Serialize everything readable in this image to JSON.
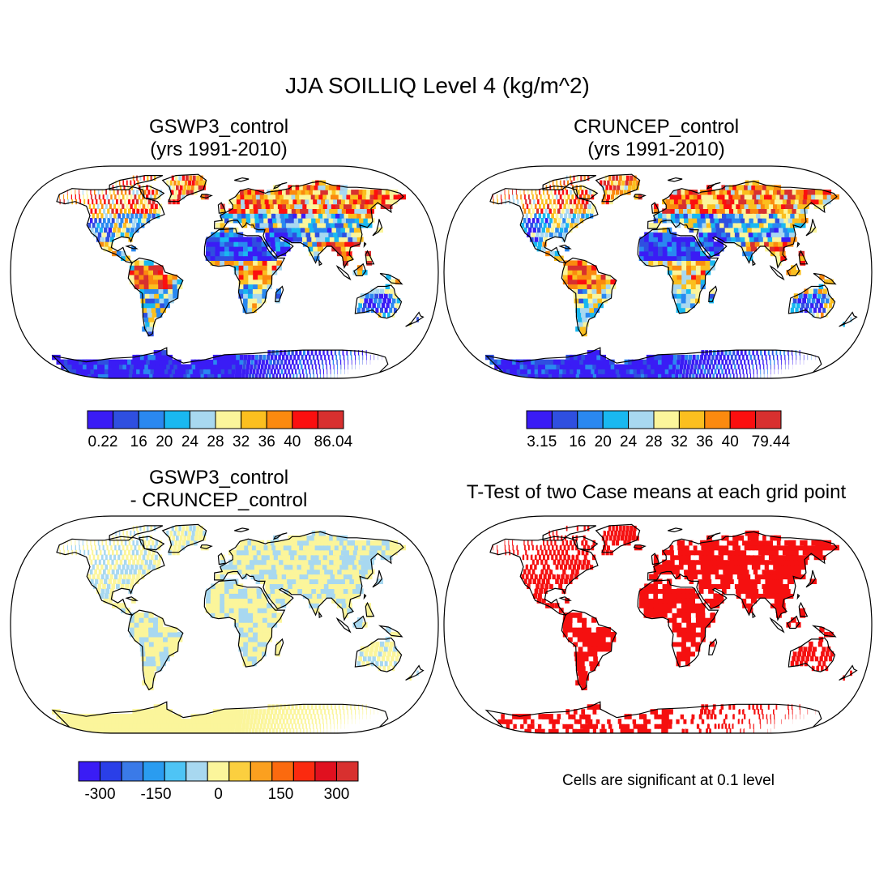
{
  "title": "JJA SOILLIQ Level 4 (kg/m^2)",
  "chart_data": [
    {
      "type": "heatmap",
      "title_line1": "GSWP3_control",
      "title_line2": "(yrs 1991-2010)",
      "projection": "robinson",
      "colorbar": {
        "colors": [
          "#3a1cf5",
          "#2f4fe0",
          "#2a88f0",
          "#19b8f0",
          "#a8d8f0",
          "#fbf59b",
          "#fbbf1f",
          "#fb8a0f",
          "#fb0f0f",
          "#d8302f"
        ],
        "tick_labels": [
          "0.22",
          "16",
          "20",
          "24",
          "28",
          "32",
          "36",
          "40",
          "86.04"
        ]
      }
    },
    {
      "type": "heatmap",
      "title_line1": "CRUNCEP_control",
      "title_line2": "(yrs 1991-2010)",
      "projection": "robinson",
      "colorbar": {
        "colors": [
          "#3a1cf5",
          "#2f4fe0",
          "#2a88f0",
          "#19b8f0",
          "#a8d8f0",
          "#fbf59b",
          "#fbbf1f",
          "#fb8a0f",
          "#fb0f0f",
          "#d8302f"
        ],
        "tick_labels": [
          "3.15",
          "16",
          "20",
          "24",
          "28",
          "32",
          "36",
          "40",
          "79.44"
        ]
      }
    },
    {
      "type": "heatmap",
      "title_line1": "GSWP3_control",
      "title_line2": "- CRUNCEP_control",
      "projection": "robinson",
      "colorbar": {
        "colors": [
          "#3a1cf5",
          "#2a3fe8",
          "#3a7ae8",
          "#2a9cf0",
          "#4ec4f5",
          "#a8d8f0",
          "#fbf59b",
          "#fbcf3f",
          "#fba01f",
          "#fb6a0f",
          "#fb2a0f",
          "#e0101f",
          "#d8302f"
        ],
        "tick_labels": [
          "-300",
          "-150",
          "0",
          "150",
          "300"
        ]
      }
    },
    {
      "type": "heatmap",
      "title_line1": "T-Test of two Case means at each grid point",
      "projection": "robinson",
      "significant_color": "#f51010",
      "note": "Cells are significant at 0.1 level"
    }
  ]
}
